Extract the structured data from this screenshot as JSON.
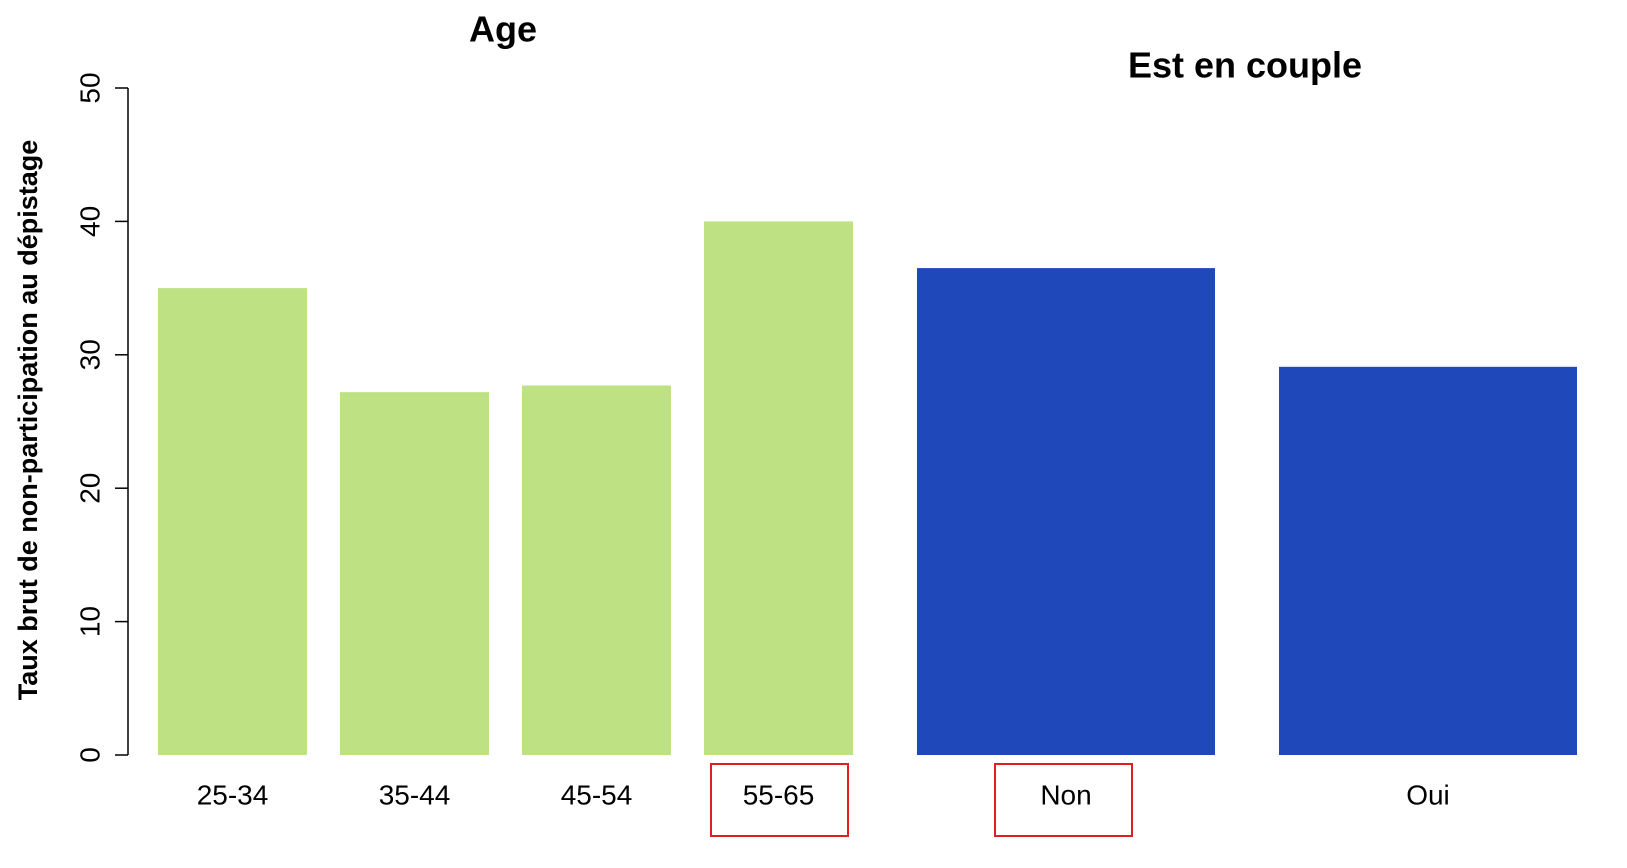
{
  "chart_data": [
    {
      "type": "bar",
      "title": "Age",
      "ylabel": "Taux brut de non-participation au dépistage",
      "categories": [
        "25-34",
        "35-44",
        "45-54",
        "55-65"
      ],
      "values": [
        35.0,
        27.2,
        27.7,
        40.0
      ],
      "color": "#bde183",
      "ylim": [
        0,
        50
      ],
      "yticks": [
        0,
        10,
        20,
        30,
        40,
        50
      ]
    },
    {
      "type": "bar",
      "title": "Est en couple",
      "categories": [
        "Non",
        "Oui"
      ],
      "values": [
        36.5,
        29.1
      ],
      "color": "#1f48bb",
      "ylim": [
        0,
        50
      ]
    }
  ]
}
